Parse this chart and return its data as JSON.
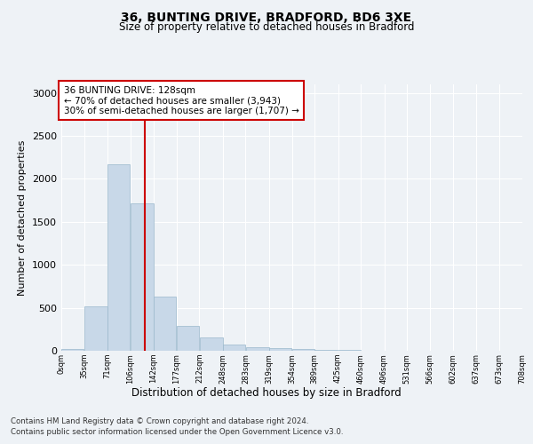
{
  "title1": "36, BUNTING DRIVE, BRADFORD, BD6 3XE",
  "title2": "Size of property relative to detached houses in Bradford",
  "xlabel": "Distribution of detached houses by size in Bradford",
  "ylabel": "Number of detached properties",
  "annotation_title": "36 BUNTING DRIVE: 128sqm",
  "annotation_line1": "← 70% of detached houses are smaller (3,943)",
  "annotation_line2": "30% of semi-detached houses are larger (1,707) →",
  "footnote1": "Contains HM Land Registry data © Crown copyright and database right 2024.",
  "footnote2": "Contains public sector information licensed under the Open Government Licence v3.0.",
  "property_size": 128,
  "bin_edges": [
    0,
    35,
    71,
    106,
    142,
    177,
    212,
    248,
    283,
    319,
    354,
    389,
    425,
    460,
    496,
    531,
    566,
    602,
    637,
    673,
    708
  ],
  "bar_heights": [
    25,
    520,
    2175,
    1720,
    635,
    290,
    150,
    75,
    45,
    30,
    20,
    15,
    10,
    5,
    3,
    2,
    1,
    1,
    1,
    1
  ],
  "bar_color": "#c8d8e8",
  "bar_edgecolor": "#9ab8cc",
  "vline_color": "#cc0000",
  "ylim": [
    0,
    3100
  ],
  "yticks": [
    0,
    500,
    1000,
    1500,
    2000,
    2500,
    3000
  ],
  "annotation_box_edgecolor": "#cc0000",
  "bg_color": "#eef2f6",
  "grid_color": "#ffffff",
  "title1_fontsize": 10,
  "title2_fontsize": 8.5,
  "ylabel_fontsize": 8,
  "xlabel_fontsize": 8.5,
  "annot_fontsize": 7.5,
  "footnote_fontsize": 6.2,
  "ytick_fontsize": 8,
  "xtick_fontsize": 6.0
}
